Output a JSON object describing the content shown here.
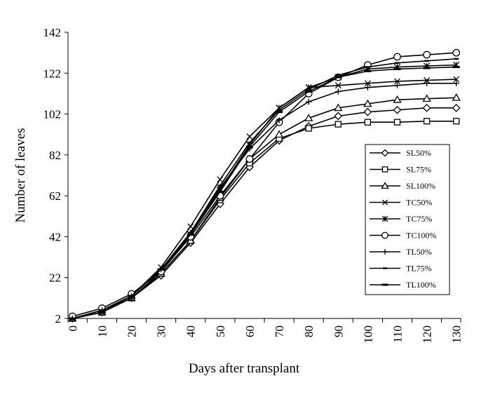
{
  "chart_data": {
    "type": "line",
    "title": "",
    "xlabel": "Days after transplant",
    "ylabel": "Number of leaves",
    "x": [
      0,
      10,
      20,
      30,
      40,
      50,
      60,
      70,
      80,
      90,
      100,
      110,
      120,
      130
    ],
    "x_tick_labels": [
      "0",
      "10",
      "20",
      "30",
      "40",
      "50",
      "60",
      "70",
      "80",
      "90",
      "100",
      "110",
      "120",
      "130"
    ],
    "y_ticks": [
      2,
      22,
      42,
      62,
      82,
      102,
      122,
      142
    ],
    "y_tick_labels": [
      "2",
      "22",
      "42",
      "62",
      "82",
      "102",
      "122",
      "142"
    ],
    "xlim": [
      -1.5,
      131.5
    ],
    "ylim": [
      2,
      142
    ],
    "grid": false,
    "legend_position": "right",
    "series": [
      {
        "name": "SL50%",
        "marker": "diamond-open",
        "values": [
          2,
          5,
          12,
          23,
          39,
          58,
          76,
          89,
          96,
          101,
          103,
          104,
          105,
          105
        ]
      },
      {
        "name": "SL75%",
        "marker": "square-open",
        "values": [
          2,
          5,
          12,
          24,
          40,
          60,
          78,
          90,
          95,
          97,
          98,
          98,
          98.5,
          98.5
        ]
      },
      {
        "name": "SL100%",
        "marker": "triangle-open",
        "values": [
          2,
          5,
          12,
          24,
          40,
          61,
          80,
          92,
          100,
          105,
          107,
          109,
          109.5,
          110
        ]
      },
      {
        "name": "TC50%",
        "marker": "x",
        "values": [
          2,
          6,
          13,
          27,
          47,
          70,
          91,
          105,
          115,
          116,
          117,
          118,
          118.5,
          119
        ]
      },
      {
        "name": "TC75%",
        "marker": "star",
        "values": [
          2,
          5,
          12,
          25,
          43,
          65,
          87,
          105,
          115,
          120,
          124,
          125,
          125.5,
          126
        ]
      },
      {
        "name": "TC100%",
        "marker": "circle-open",
        "values": [
          3,
          7,
          14,
          25,
          42,
          62,
          80,
          98,
          112,
          120,
          126,
          130,
          131,
          132
        ]
      },
      {
        "name": "TL50%",
        "marker": "plus",
        "values": [
          2,
          6,
          13,
          26,
          44,
          66,
          85,
          99,
          108,
          113,
          115,
          116,
          117,
          117
        ]
      },
      {
        "name": "TL75%",
        "marker": "dash",
        "values": [
          2,
          6,
          13,
          26,
          44,
          67,
          88,
          104,
          114,
          121,
          125,
          127,
          128,
          129
        ]
      },
      {
        "name": "TL100%",
        "marker": "bar",
        "values": [
          2,
          5,
          13,
          26,
          43,
          64,
          86,
          103,
          113,
          120,
          123,
          124,
          124.5,
          125
        ]
      }
    ]
  }
}
